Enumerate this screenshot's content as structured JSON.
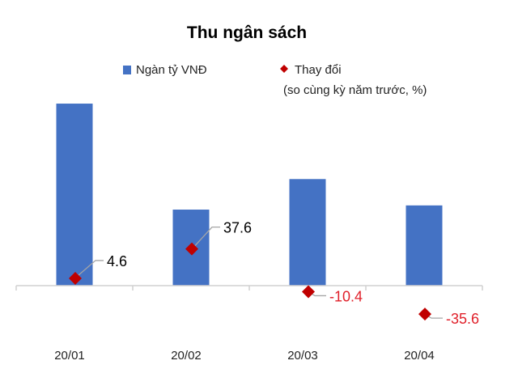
{
  "chart_data": {
    "type": "bar",
    "title": "Thu ngân sách",
    "categories": [
      "20/01",
      "20/02",
      "20/03",
      "20/04"
    ],
    "series": [
      {
        "name": "Ngàn tỷ VNĐ",
        "type": "bar",
        "values": [
          152,
          63.5,
          89,
          67
        ],
        "color": "#4472c4"
      },
      {
        "name": "Thay đổi",
        "name_line2": "(so cùng kỳ năm trước, %)",
        "type": "scatter",
        "marker": "diamond",
        "values": [
          4.6,
          37.6,
          -10.4,
          -35.6
        ],
        "labels": [
          "4.6",
          "37.6",
          "-10.4",
          "-35.6"
        ],
        "color": "#c00000"
      }
    ],
    "label_colors": {
      "positive": "#000000",
      "negative": "#e0202a"
    },
    "legend": "top",
    "grid": false,
    "y_axis_visible": false
  }
}
